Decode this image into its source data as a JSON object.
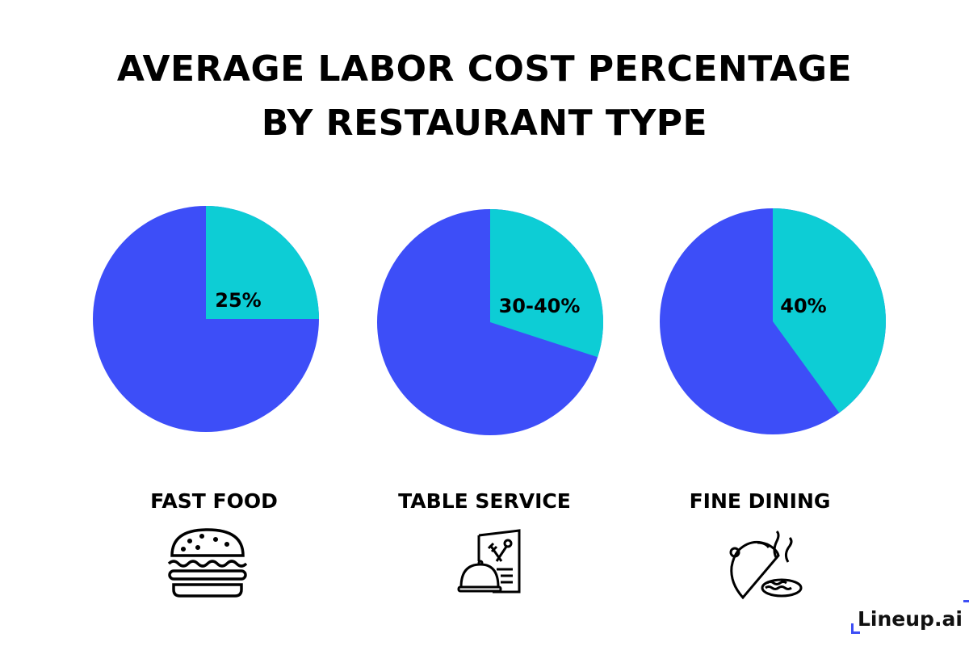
{
  "chart_data": {
    "type": "pie",
    "title": [
      "AVERAGE LABOR COST PERCENTAGE",
      "BY RESTAURANT TYPE"
    ],
    "colors": {
      "labor": "#0dcdd5",
      "other": "#3d4ef8"
    },
    "pies": [
      {
        "category": "FAST FOOD",
        "value": 25,
        "label": "25%",
        "icon": "burger-icon"
      },
      {
        "category": "TABLE SERVICE",
        "value": 30,
        "label": "30-40%",
        "icon": "menu-cloche-icon"
      },
      {
        "category": "FINE DINING",
        "value": 40,
        "label": "40%",
        "icon": "fine-dining-plate-icon"
      }
    ]
  },
  "logo": {
    "text": "Lineup.ai",
    "tm": "™"
  }
}
